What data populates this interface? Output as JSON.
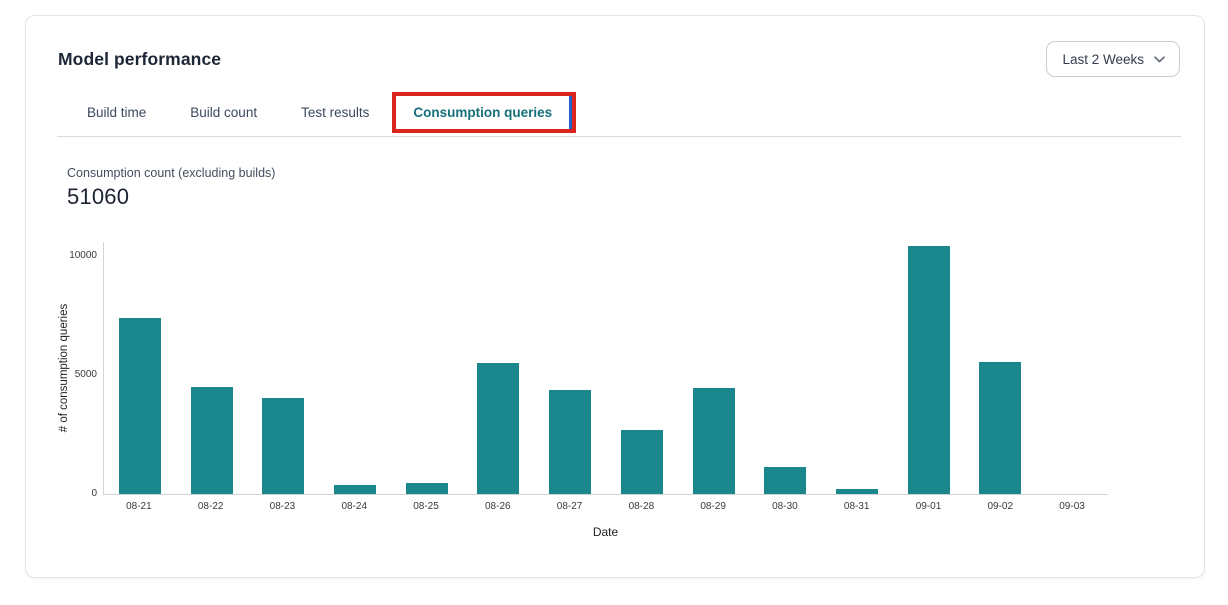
{
  "header": {
    "title": "Model performance",
    "range_selector": {
      "label": "Last 2 Weeks"
    }
  },
  "tabs": [
    {
      "label": "Build time",
      "active": false
    },
    {
      "label": "Build count",
      "active": false
    },
    {
      "label": "Test results",
      "active": false
    },
    {
      "label": "Consumption queries",
      "active": true,
      "annotated": true
    }
  ],
  "metric": {
    "label": "Consumption count (excluding builds)",
    "value": "51060"
  },
  "chart_data": {
    "type": "bar",
    "categories": [
      "08-21",
      "08-22",
      "08-23",
      "08-24",
      "08-25",
      "08-26",
      "08-27",
      "08-28",
      "08-29",
      "08-30",
      "08-31",
      "09-01",
      "09-02",
      "09-03"
    ],
    "values": [
      7400,
      4500,
      4050,
      360,
      450,
      5500,
      4350,
      2700,
      4450,
      1150,
      200,
      10400,
      5550,
      0
    ],
    "title": "",
    "xlabel": "Date",
    "ylabel": "# of consumption queries",
    "ylim": [
      0,
      10000
    ],
    "yticks": [
      0,
      5000,
      10000
    ],
    "grid": false,
    "legend": false,
    "bar_color": "#1a878c"
  },
  "icons": {
    "chevron_down": "chevron-down-icon"
  },
  "colors": {
    "bar": "#1a878c",
    "active_tab": "#15707b",
    "annotation_red": "#da251c",
    "annotation_blue": "#1f65c9"
  }
}
